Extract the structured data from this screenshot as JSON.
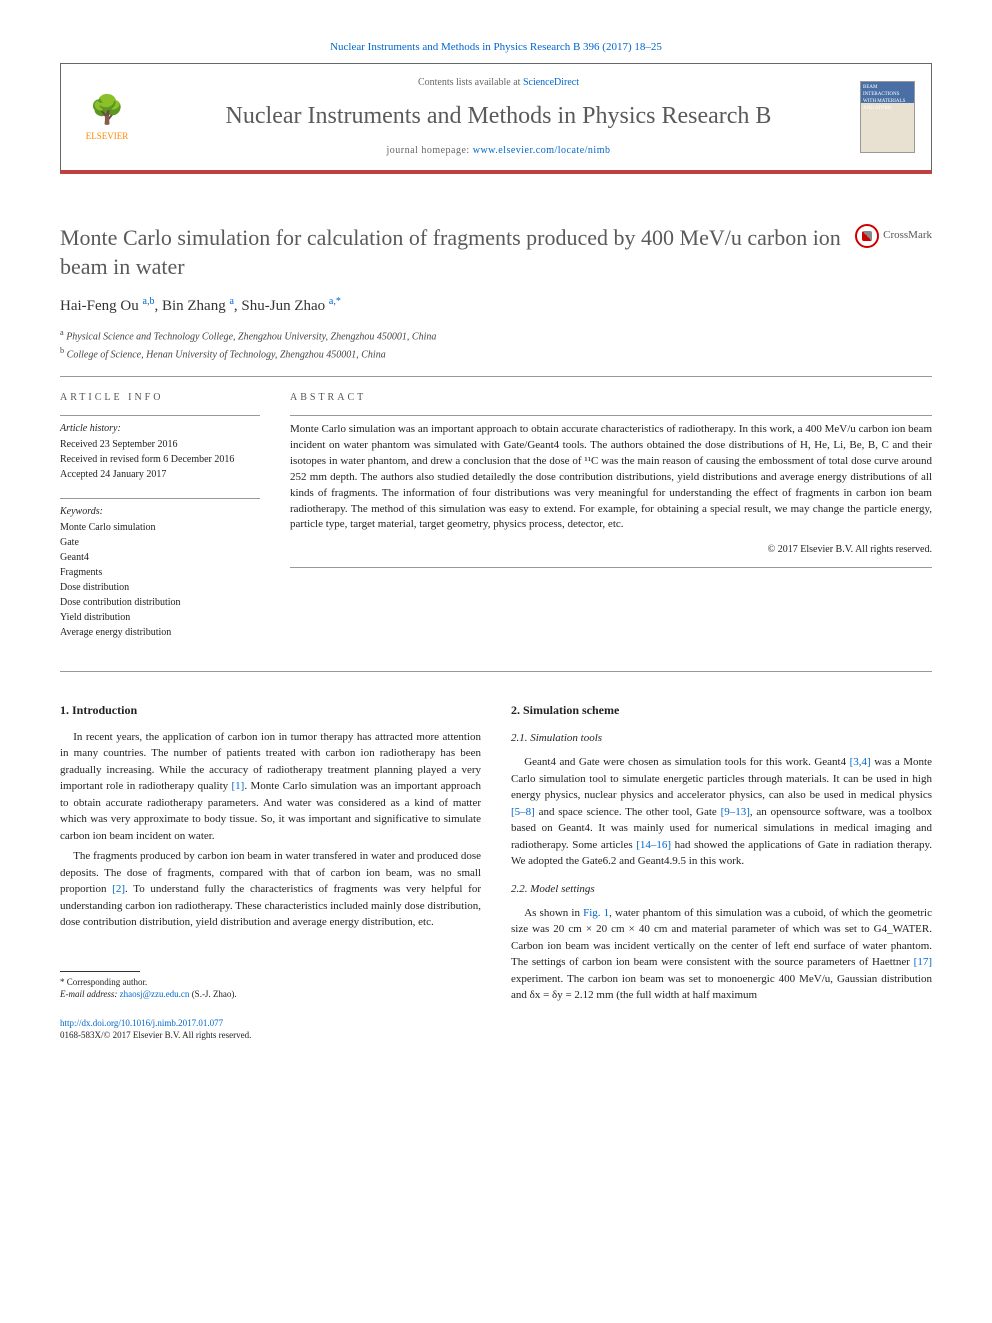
{
  "header": {
    "journal_ref": "Nuclear Instruments and Methods in Physics Research B 396 (2017) 18–25",
    "contents_prefix": "Contents lists available at ",
    "contents_link": "ScienceDirect",
    "journal_title": "Nuclear Instruments and Methods in Physics Research B",
    "homepage_prefix": "journal homepage: ",
    "homepage_link": "www.elsevier.com/locate/nimb",
    "publisher": "ELSEVIER",
    "cover_text": "BEAM INTERACTIONS WITH MATERIALS AND ATOMS"
  },
  "article": {
    "title": "Monte Carlo simulation for calculation of fragments produced by 400 MeV/u carbon ion beam in water",
    "crossmark": "CrossMark",
    "authors_html": "Hai-Feng Ou <sup>a,b</sup>, Bin Zhang <sup>a</sup>, Shu-Jun Zhao <sup>a,*</sup>",
    "affiliations": [
      "a Physical Science and Technology College, Zhengzhou University, Zhengzhou 450001, China",
      "b College of Science, Henan University of Technology, Zhengzhou 450001, China"
    ]
  },
  "info": {
    "head": "ARTICLE INFO",
    "history_label": "Article history:",
    "history": [
      "Received 23 September 2016",
      "Received in revised form 6 December 2016",
      "Accepted 24 January 2017"
    ],
    "keywords_label": "Keywords:",
    "keywords": [
      "Monte Carlo simulation",
      "Gate",
      "Geant4",
      "Fragments",
      "Dose distribution",
      "Dose contribution distribution",
      "Yield distribution",
      "Average energy distribution"
    ]
  },
  "abstract": {
    "head": "ABSTRACT",
    "text": "Monte Carlo simulation was an important approach to obtain accurate characteristics of radiotherapy. In this work, a 400 MeV/u carbon ion beam incident on water phantom was simulated with Gate/Geant4 tools. The authors obtained the dose distributions of H, He, Li, Be, B, C and their isotopes in water phantom, and drew a conclusion that the dose of ¹¹C was the main reason of causing the embossment of total dose curve around 252 mm depth. The authors also studied detailedly the dose contribution distributions, yield distributions and average energy distributions of all kinds of fragments. The information of four distributions was very meaningful for understanding the effect of fragments in carbon ion beam radiotherapy. The method of this simulation was easy to extend. For example, for obtaining a special result, we may change the particle energy, particle type, target material, target geometry, physics process, detector, etc.",
    "copyright": "© 2017 Elsevier B.V. All rights reserved."
  },
  "body": {
    "sec1_head": "1. Introduction",
    "sec1_p1": "In recent years, the application of carbon ion in tumor therapy has attracted more attention in many countries. The number of patients treated with carbon ion radiotherapy has been gradually increasing. While the accuracy of radiotherapy treatment planning played a very important role in radiotherapy quality [1]. Monte Carlo simulation was an important approach to obtain accurate radiotherapy parameters. And water was considered as a kind of matter which was very approximate to body tissue. So, it was important and significative to simulate carbon ion beam incident on water.",
    "sec1_p2": "The fragments produced by carbon ion beam in water transfered in water and produced dose deposits. The dose of fragments, compared with that of carbon ion beam, was no small proportion [2]. To understand fully the characteristics of fragments was very helpful for understanding carbon ion radiotherapy. These characteristics included mainly dose distribution, dose contribution distribution, yield distribution and average energy distribution, etc.",
    "sec2_head": "2. Simulation scheme",
    "sec21_head": "2.1. Simulation tools",
    "sec21_p1": "Geant4 and Gate were chosen as simulation tools for this work. Geant4 [3,4] was a Monte Carlo simulation tool to simulate energetic particles through materials. It can be used in high energy physics, nuclear physics and accelerator physics, can also be used in medical physics [5–8] and space science. The other tool, Gate [9–13], an opensource software, was a toolbox based on Geant4. It was mainly used for numerical simulations in medical imaging and radiotherapy. Some articles [14–16] had showed the applications of Gate in radiation therapy. We adopted the Gate6.2 and Geant4.9.5 in this work.",
    "sec22_head": "2.2. Model settings",
    "sec22_p1": "As shown in Fig. 1, water phantom of this simulation was a cuboid, of which the geometric size was 20 cm × 20 cm × 40 cm and material parameter of which was set to G4_WATER. Carbon ion beam was incident vertically on the center of left end surface of water phantom. The settings of carbon ion beam were consistent with the source parameters of Haettner [17] experiment. The carbon ion beam was set to monoenergic 400 MeV/u, Gaussian distribution and δx = δy = 2.12 mm (the full width at half maximum"
  },
  "footnote": {
    "corr": "* Corresponding author.",
    "email_label": "E-mail address: ",
    "email": "zhaosj@zzu.edu.cn",
    "email_who": " (S.-J. Zhao)."
  },
  "doi": {
    "url": "http://dx.doi.org/10.1016/j.nimb.2017.01.077",
    "issn": "0168-583X/© 2017 Elsevier B.V. All rights reserved."
  },
  "refs": {
    "r1": "[1]",
    "r2": "[2]",
    "r34": "[3,4]",
    "r58": "[5–8]",
    "r913": "[9–13]",
    "r1416": "[14–16]",
    "r17": "[17]",
    "fig1": "Fig. 1"
  }
}
